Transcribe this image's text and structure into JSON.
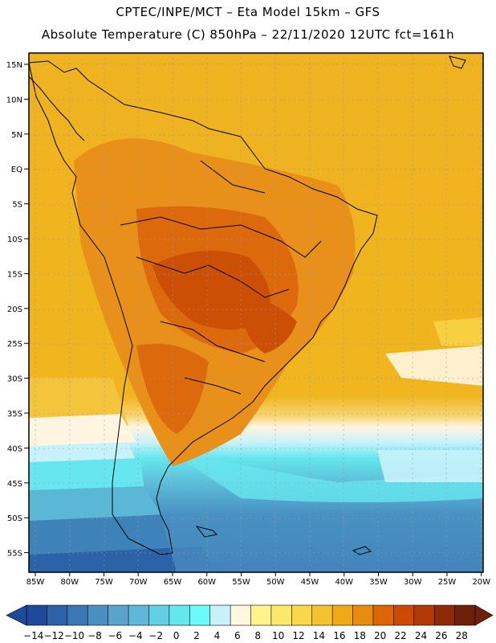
{
  "header": {
    "line1": "CPTEC/INPE/MCT –  Eta Model 15km – GFS",
    "line2": "Absolute Temperature (C) 850hPa – 22/11/2020 12UTC fct=161h"
  },
  "axes": {
    "lat_labels": [
      "15N",
      "10N",
      "5N",
      "EQ",
      "5S",
      "10S",
      "15S",
      "20S",
      "25S",
      "30S",
      "35S",
      "40S",
      "45S",
      "50S",
      "55S"
    ],
    "lon_labels": [
      "85W",
      "80W",
      "75W",
      "70W",
      "65W",
      "60W",
      "55W",
      "50W",
      "45W",
      "40W",
      "35W",
      "30W",
      "25W",
      "20W"
    ]
  },
  "colorbar": {
    "labels": [
      "-14",
      "-12",
      "-10",
      "-8",
      "-6",
      "-4",
      "-2",
      "0",
      "2",
      "4",
      "6",
      "8",
      "10",
      "12",
      "14",
      "16",
      "18",
      "20",
      "22",
      "24",
      "26",
      "28"
    ],
    "colors": [
      "#1f4a9c",
      "#2c62a8",
      "#3a78b4",
      "#4b8fc1",
      "#5aa4cc",
      "#5fb8d8",
      "#62cfe4",
      "#66e6ef",
      "#6cfbfb",
      "#c8f2fb",
      "#fff7e0",
      "#fff48c",
      "#fde86a",
      "#f9d64a",
      "#f4c22c",
      "#efaa14",
      "#e88c10",
      "#de6408",
      "#cc4a06",
      "#b33a06",
      "#8e2a08",
      "#6e2008"
    ]
  }
}
